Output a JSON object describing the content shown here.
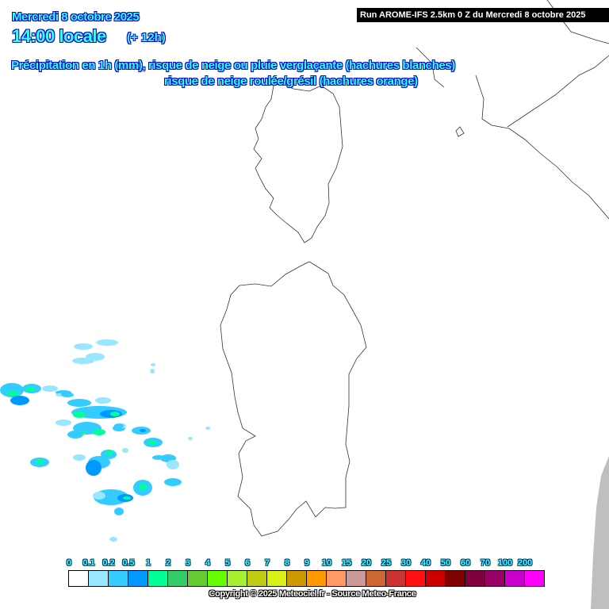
{
  "header": {
    "date": "Mercredi 8 octobre 2025",
    "time": "14:00 locale",
    "lead": "(+ 12h)",
    "description_line1": "Précipitation en 1h (mm), risque de neige ou pluie verglaçante (hachures blanches)",
    "description_line2": "risque de neige roulée/grésil (hachures orange)",
    "run": "Run AROME-IFS 2.5km 0 Z du Mercredi 8 octobre 2025"
  },
  "legend": {
    "labels": [
      "0",
      "0.1",
      "0.2",
      "0.5",
      "1",
      "2",
      "3",
      "4",
      "5",
      "6",
      "7",
      "8",
      "9",
      "10",
      "15",
      "20",
      "25",
      "30",
      "40",
      "50",
      "60",
      "70",
      "100",
      "200"
    ],
    "colors": [
      "#ffffff",
      "#99e6ff",
      "#33ccff",
      "#0099ff",
      "#00ff99",
      "#33cc66",
      "#66cc33",
      "#66ff00",
      "#a6f02f",
      "#bfcc12",
      "#d9f015",
      "#cc9900",
      "#ff9900",
      "#ff9966",
      "#cc9999",
      "#cc6633",
      "#cc3333",
      "#ff1111",
      "#cc0000",
      "#800000",
      "#800040",
      "#990066",
      "#cc00cc",
      "#ff00ff"
    ]
  },
  "copyright": "Copyright © 2025 Meteociel.fr - Source Meteo-France",
  "map": {
    "coast_color": "#333333",
    "land_mask_color": "#bfbfbf"
  }
}
